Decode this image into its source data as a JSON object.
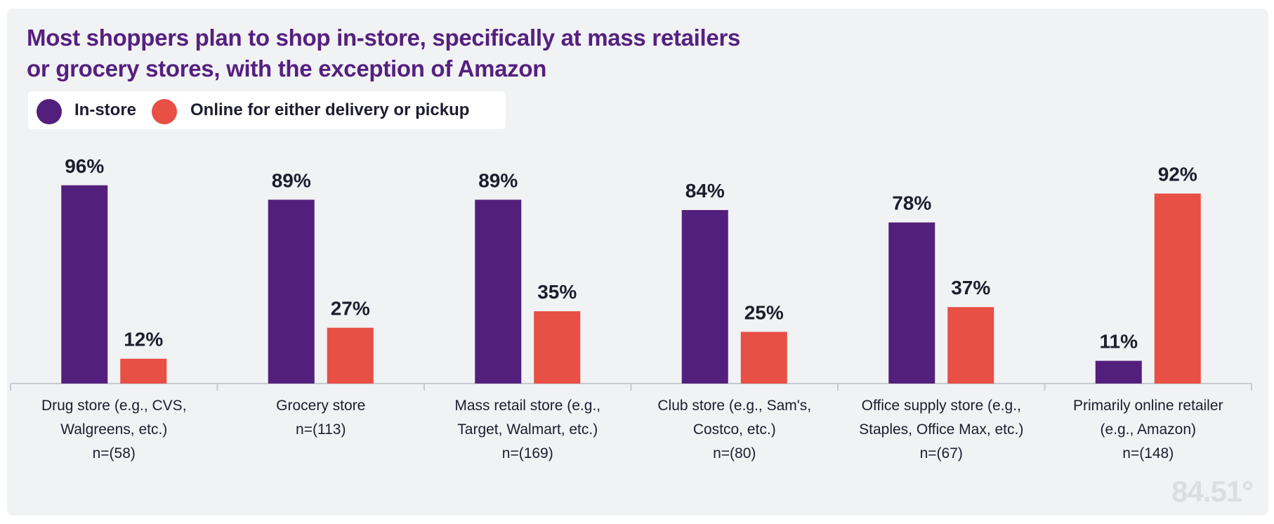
{
  "chart_data": {
    "type": "bar",
    "title": "Most shoppers plan to shop in-store, specifically at mass retailers or grocery stores, with the exception of Amazon",
    "title_lines": [
      "Most shoppers plan to shop in-store, specifically at mass retailers",
      "or grocery stores, with the exception of Amazon"
    ],
    "legend_position": "top-left",
    "categories": [
      [
        "Drug store (e.g., CVS,",
        "Walgreens, etc.)",
        "n=(58)"
      ],
      [
        "Grocery store",
        "n=(113)"
      ],
      [
        "Mass retail store (e.g.,",
        "Target, Walmart, etc.)",
        "n=(169)"
      ],
      [
        "Club store (e.g., Sam's,",
        "Costco, etc.)",
        "n=(80)"
      ],
      [
        "Office supply store (e.g.,",
        "Staples, Office Max, etc.)",
        "n=(67)"
      ],
      [
        "Primarily online retailer",
        "(e.g., Amazon)",
        "n=(148)"
      ]
    ],
    "series": [
      {
        "name": "In-store",
        "color": "#531f7c",
        "values": [
          96,
          89,
          89,
          84,
          78,
          11
        ]
      },
      {
        "name": "Online for either delivery or pickup",
        "color": "#e84f45",
        "values": [
          12,
          27,
          35,
          25,
          37,
          92
        ]
      }
    ],
    "value_suffix": "%",
    "ylim": [
      0,
      100
    ],
    "grid": false
  },
  "watermark": "84.51°"
}
